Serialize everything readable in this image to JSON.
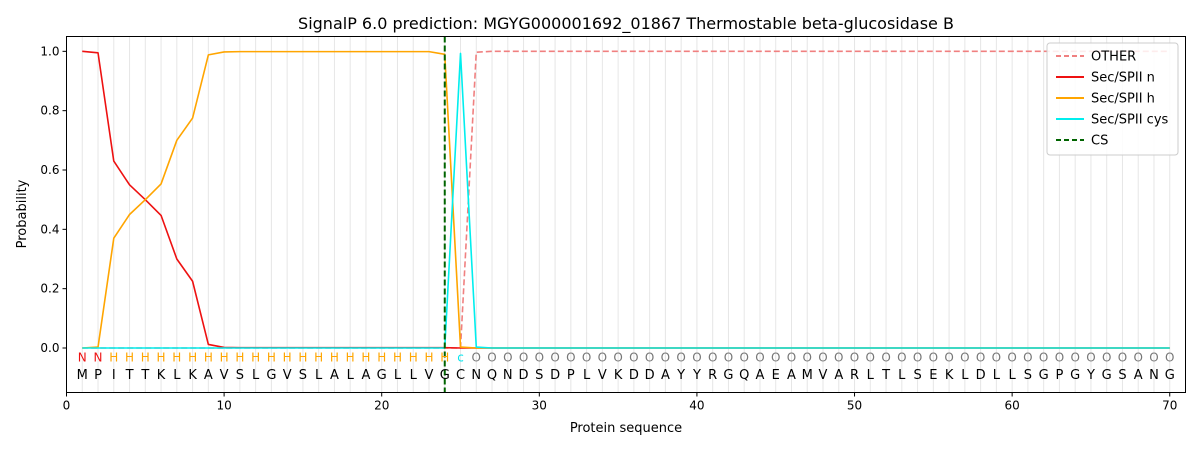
{
  "chart_data": {
    "type": "line",
    "title": "SignalP 6.0 prediction: MGYG000001692_01867 Thermostable beta-glucosidase B",
    "xlabel": "Protein sequence",
    "ylabel": "Probability",
    "xlim": [
      0,
      71
    ],
    "ylim": [
      -0.15,
      1.05
    ],
    "xticks": [
      0,
      10,
      20,
      30,
      40,
      50,
      60,
      70
    ],
    "yticks": [
      0.0,
      0.2,
      0.4,
      0.6,
      0.8,
      1.0
    ],
    "grid": "vertical lines at each residue",
    "legend_position": "top-right",
    "x": [
      1,
      2,
      3,
      4,
      5,
      6,
      7,
      8,
      9,
      10,
      11,
      12,
      13,
      14,
      15,
      16,
      17,
      18,
      19,
      20,
      21,
      22,
      23,
      24,
      25,
      26,
      27,
      28,
      29,
      30,
      31,
      32,
      33,
      34,
      35,
      36,
      37,
      38,
      39,
      40,
      41,
      42,
      43,
      44,
      45,
      46,
      47,
      48,
      49,
      50,
      51,
      52,
      53,
      54,
      55,
      56,
      57,
      58,
      59,
      60,
      61,
      62,
      63,
      64,
      65,
      66,
      67,
      68,
      69,
      70
    ],
    "sequence": [
      "M",
      "P",
      "I",
      "T",
      "T",
      "K",
      "L",
      "K",
      "A",
      "V",
      "S",
      "L",
      "G",
      "V",
      "S",
      "L",
      "A",
      "L",
      "A",
      "G",
      "L",
      "L",
      "V",
      "G",
      "C",
      "N",
      "Q",
      "N",
      "D",
      "S",
      "D",
      "P",
      "L",
      "V",
      "K",
      "D",
      "D",
      "A",
      "Y",
      "Y",
      "R",
      "G",
      "Q",
      "A",
      "E",
      "A",
      "M",
      "V",
      "A",
      "R",
      "L",
      "T",
      "L",
      "S",
      "E",
      "K",
      "L",
      "D",
      "L",
      "L",
      "S",
      "G",
      "P",
      "G",
      "Y",
      "G",
      "S",
      "A",
      "N",
      "G"
    ],
    "labels": [
      "N",
      "N",
      "H",
      "H",
      "H",
      "H",
      "H",
      "H",
      "H",
      "H",
      "H",
      "H",
      "H",
      "H",
      "H",
      "H",
      "H",
      "H",
      "H",
      "H",
      "H",
      "H",
      "H",
      "H",
      "c",
      "O",
      "O",
      "O",
      "O",
      "O",
      "O",
      "O",
      "O",
      "O",
      "O",
      "O",
      "O",
      "O",
      "O",
      "O",
      "O",
      "O",
      "O",
      "O",
      "O",
      "O",
      "O",
      "O",
      "O",
      "O",
      "O",
      "O",
      "O",
      "O",
      "O",
      "O",
      "O",
      "O",
      "O",
      "O",
      "O",
      "O",
      "O",
      "O",
      "O",
      "O",
      "O",
      "O",
      "O",
      "O"
    ],
    "label_colors": {
      "N": "#ee1111",
      "H": "#ffa500",
      "c": "#00e5ee",
      "O": "#777777"
    },
    "series": [
      {
        "name": "OTHER",
        "color": "#f08080",
        "style": "dashed",
        "values": [
          0,
          0,
          0,
          0,
          0,
          0,
          0,
          0,
          0,
          0,
          0,
          0,
          0,
          0,
          0,
          0,
          0,
          0,
          0,
          0,
          0,
          0,
          0,
          0,
          0,
          0.997,
          1,
          1,
          1,
          1,
          1,
          1,
          1,
          1,
          1,
          1,
          1,
          1,
          1,
          1,
          1,
          1,
          1,
          1,
          1,
          1,
          1,
          1,
          1,
          1,
          1,
          1,
          1,
          1,
          1,
          1,
          1,
          1,
          1,
          1,
          1,
          1,
          1,
          1,
          1,
          1,
          1,
          1,
          1,
          1
        ]
      },
      {
        "name": "Sec/SPII n",
        "color": "#ee1111",
        "style": "solid",
        "values": [
          1.0,
          0.995,
          0.63,
          0.55,
          0.5,
          0.447,
          0.3,
          0.225,
          0.012,
          0.002,
          0.001,
          0.001,
          0.001,
          0.001,
          0.001,
          0.001,
          0.001,
          0.001,
          0.001,
          0.001,
          0.001,
          0.001,
          0.001,
          0.001,
          0,
          0,
          0,
          0,
          0,
          0,
          0,
          0,
          0,
          0,
          0,
          0,
          0,
          0,
          0,
          0,
          0,
          0,
          0,
          0,
          0,
          0,
          0,
          0,
          0,
          0,
          0,
          0,
          0,
          0,
          0,
          0,
          0,
          0,
          0,
          0,
          0,
          0,
          0,
          0,
          0,
          0,
          0,
          0,
          0,
          0
        ]
      },
      {
        "name": "Sec/SPII h",
        "color": "#ffa500",
        "style": "solid",
        "values": [
          0,
          0.003,
          0.37,
          0.45,
          0.5,
          0.553,
          0.7,
          0.775,
          0.988,
          0.998,
          0.999,
          0.999,
          0.999,
          0.999,
          0.999,
          0.999,
          0.999,
          0.999,
          0.999,
          0.999,
          0.999,
          0.999,
          0.999,
          0.99,
          0.003,
          0,
          0,
          0,
          0,
          0,
          0,
          0,
          0,
          0,
          0,
          0,
          0,
          0,
          0,
          0,
          0,
          0,
          0,
          0,
          0,
          0,
          0,
          0,
          0,
          0,
          0,
          0,
          0,
          0,
          0,
          0,
          0,
          0,
          0,
          0,
          0,
          0,
          0,
          0,
          0,
          0,
          0,
          0,
          0,
          0
        ]
      },
      {
        "name": "Sec/SPII cys",
        "color": "#00eeee",
        "style": "solid",
        "values": [
          0,
          0,
          0,
          0,
          0,
          0,
          0,
          0,
          0,
          0,
          0,
          0,
          0,
          0,
          0,
          0,
          0,
          0,
          0,
          0,
          0,
          0,
          0,
          0,
          0.993,
          0.003,
          0,
          0,
          0,
          0,
          0,
          0,
          0,
          0,
          0,
          0,
          0,
          0,
          0,
          0,
          0,
          0,
          0,
          0,
          0,
          0,
          0,
          0,
          0,
          0,
          0,
          0,
          0,
          0,
          0,
          0,
          0,
          0,
          0,
          0,
          0,
          0,
          0,
          0,
          0,
          0,
          0,
          0,
          0,
          0
        ]
      },
      {
        "name": "CS",
        "color": "#006400",
        "style": "dashed",
        "vertical_at": 24
      }
    ]
  }
}
